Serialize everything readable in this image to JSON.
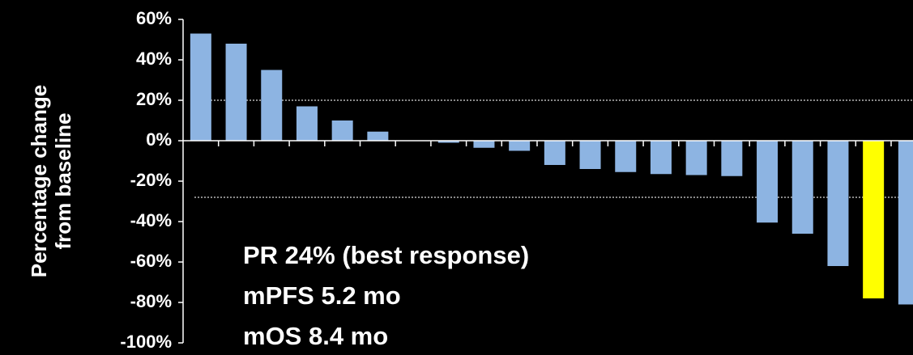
{
  "chart_data": {
    "type": "bar",
    "y_label": [
      "Percentage change",
      "from baseline"
    ],
    "annotations": [
      "PR 24% (best response)",
      "mPFS 5.2 mo",
      "mOS 8.4 mo"
    ],
    "categories": [
      null,
      null,
      null,
      null,
      null,
      null,
      null,
      null,
      null,
      null,
      null,
      null,
      null,
      null,
      null,
      null,
      null,
      null,
      null,
      null,
      null
    ],
    "values": [
      53,
      48,
      35,
      17,
      10,
      4.5,
      0,
      -1,
      -3.5,
      -5,
      -12,
      -14,
      -15.5,
      -16.5,
      -17,
      -17.5,
      -40.5,
      -46,
      -62,
      -78,
      -81
    ],
    "colors": [
      "#8db4e2",
      "#8db4e2",
      "#8db4e2",
      "#8db4e2",
      "#8db4e2",
      "#8db4e2",
      "#8db4e2",
      "#8db4e2",
      "#8db4e2",
      "#8db4e2",
      "#8db4e2",
      "#8db4e2",
      "#8db4e2",
      "#8db4e2",
      "#8db4e2",
      "#8db4e2",
      "#8db4e2",
      "#8db4e2",
      "#8db4e2",
      "#ffff00",
      "#8db4e2"
    ],
    "ylim": [
      -100,
      60
    ],
    "yticks": [
      {
        "value": -100,
        "label": "-100%"
      },
      {
        "value": -80,
        "label": "-80%"
      },
      {
        "value": -60,
        "label": "-60%"
      },
      {
        "value": -40,
        "label": "-40%"
      },
      {
        "value": -20,
        "label": "-20%"
      },
      {
        "value": 0,
        "label": "0%"
      },
      {
        "value": 20,
        "label": "20%"
      },
      {
        "value": 40,
        "label": "40%"
      },
      {
        "value": 60,
        "label": "60%"
      }
    ],
    "reference_lines": [
      20,
      -28
    ]
  }
}
